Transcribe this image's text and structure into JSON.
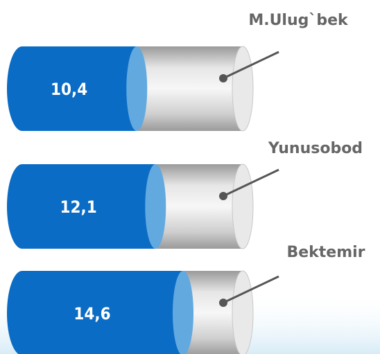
{
  "chart_data": {
    "type": "cylinder-bar",
    "categories": [
      "M.Ulug`bek",
      "Yunusobod",
      "Bektemir"
    ],
    "values": [
      10.4,
      12.1,
      14.6
    ],
    "value_labels": [
      "10,4",
      "12,1",
      "14,6"
    ],
    "color": "#0a6cc4"
  }
}
